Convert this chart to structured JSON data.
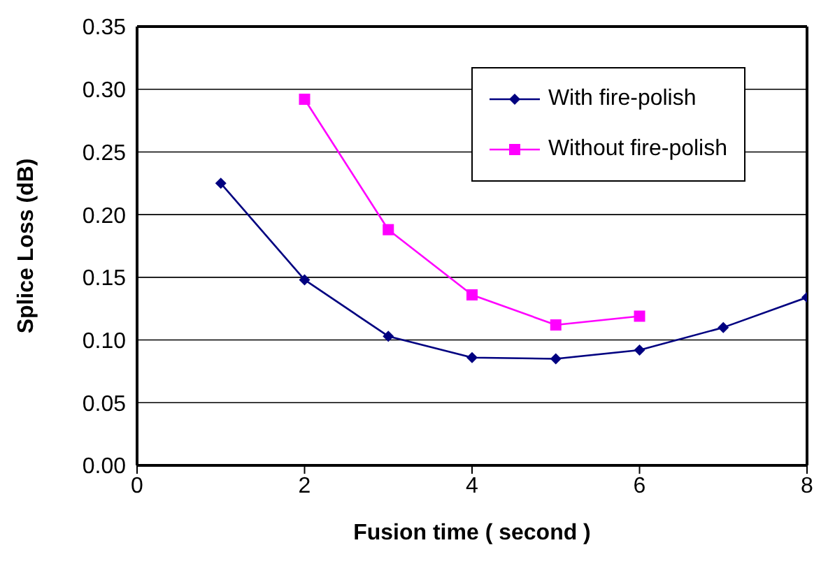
{
  "chart_data": {
    "type": "line",
    "xlabel": "Fusion time ( second )",
    "ylabel": "Splice Loss (dB)",
    "xlim": [
      0,
      8
    ],
    "xticks": [
      0,
      2,
      4,
      6,
      8
    ],
    "ylim": [
      0,
      0.35
    ],
    "yticks": [
      {
        "value": 0,
        "label": "0.00"
      },
      {
        "value": 0.05,
        "label": "0.05"
      },
      {
        "value": 0.1,
        "label": "0.10"
      },
      {
        "value": 0.15,
        "label": "0.15"
      },
      {
        "value": 0.2,
        "label": "0.20"
      },
      {
        "value": 0.25,
        "label": "0.25"
      },
      {
        "value": 0.3,
        "label": "0.30"
      },
      {
        "value": 0.35,
        "label": "0.35"
      }
    ],
    "grid": "y",
    "legend": "top right",
    "line_style": "solid",
    "series": [
      {
        "name": "With fire-polish",
        "color": "#000080",
        "marker": "diamond",
        "x": [
          1,
          2,
          3,
          4,
          5,
          6,
          7,
          8
        ],
        "values": [
          0.225,
          0.148,
          0.103,
          0.086,
          0.085,
          0.092,
          0.11,
          0.134
        ]
      },
      {
        "name": "Without fire-polish",
        "color": "#ff00ff",
        "marker": "square",
        "x": [
          2,
          3,
          4,
          5,
          6
        ],
        "values": [
          0.292,
          0.188,
          0.136,
          0.112,
          0.119
        ]
      }
    ]
  }
}
